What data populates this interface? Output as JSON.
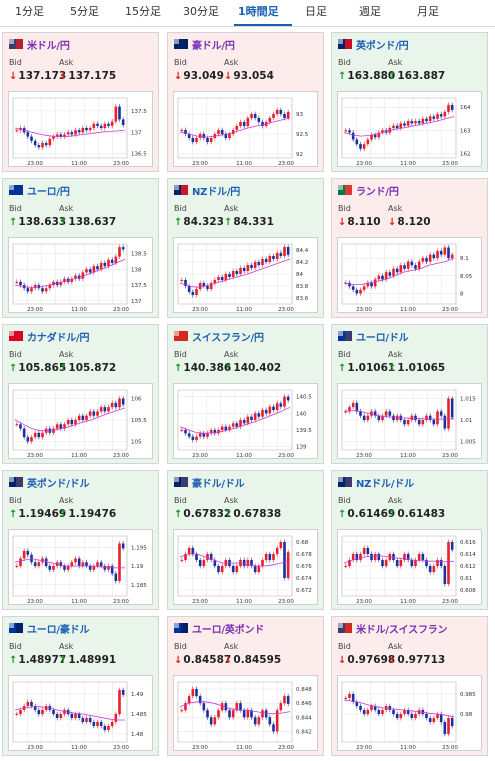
{
  "tabs": [
    {
      "label": "1分足",
      "active": false
    },
    {
      "label": "5分足",
      "active": false
    },
    {
      "label": "15分足",
      "active": false
    },
    {
      "label": "30分足",
      "active": false
    },
    {
      "label": "1時間足",
      "active": true
    },
    {
      "label": "日足",
      "active": false
    },
    {
      "label": "週足",
      "active": false
    },
    {
      "label": "月足",
      "active": false
    }
  ],
  "labels": {
    "bid": "Bid",
    "ask": "Ask"
  },
  "cards": [
    {
      "name": "米ドル/円",
      "trend": "down",
      "flag": [
        "#3c3b6e",
        "#b22234"
      ],
      "bid": "137.173",
      "ask": "137.175",
      "chart": {
        "yticks": [
          "137.5",
          "137",
          "136.5"
        ],
        "xticks": [
          "23:00",
          "11:00",
          "23:00"
        ],
        "ymin": 136.4,
        "ymax": 137.8,
        "values": [
          137.05,
          137.1,
          137.0,
          136.9,
          136.8,
          136.7,
          136.65,
          136.75,
          136.7,
          136.85,
          136.9,
          136.95,
          136.9,
          136.95,
          137.0,
          136.95,
          137.05,
          137.0,
          137.1,
          137.05,
          137.1,
          137.2,
          137.15,
          137.1,
          137.2,
          137.15,
          137.25,
          137.6,
          137.3,
          137.17
        ],
        "ma": [
          137.1,
          137.05,
          137.0,
          136.95,
          136.92,
          136.9,
          136.9,
          136.92,
          136.95,
          136.97,
          137.0,
          137.02,
          137.03,
          137.05
        ]
      }
    },
    {
      "name": "豪ドル/円",
      "trend": "down",
      "flag": [
        "#012169",
        "#012169"
      ],
      "bid": "93.049",
      "ask": "93.054",
      "chart": {
        "yticks": [
          "93",
          "92.5",
          "92"
        ],
        "xticks": [
          "23:00",
          "11:00",
          "23:00"
        ],
        "ymin": 91.9,
        "ymax": 93.4,
        "values": [
          92.6,
          92.5,
          92.4,
          92.3,
          92.4,
          92.5,
          92.4,
          92.3,
          92.4,
          92.5,
          92.6,
          92.5,
          92.4,
          92.5,
          92.6,
          92.7,
          92.8,
          92.7,
          92.9,
          93.0,
          92.9,
          92.8,
          92.7,
          92.8,
          92.9,
          93.0,
          93.1,
          93.0,
          92.9,
          93.05
        ],
        "ma": [
          92.55,
          92.5,
          92.45,
          92.42,
          92.44,
          92.48,
          92.52,
          92.58,
          92.65,
          92.7,
          92.74,
          92.8,
          92.85,
          92.9
        ]
      }
    },
    {
      "name": "英ポンド/円",
      "trend": "up",
      "flag": [
        "#012169",
        "#c8102e"
      ],
      "bid": "163.880",
      "ask": "163.887",
      "chart": {
        "yticks": [
          "164",
          "163",
          "162"
        ],
        "xticks": [
          "23:00",
          "11:00",
          "23:00"
        ],
        "ymin": 161.8,
        "ymax": 164.4,
        "values": [
          163.0,
          162.9,
          162.6,
          162.4,
          162.2,
          162.4,
          162.6,
          162.8,
          162.7,
          162.9,
          163.0,
          162.9,
          163.1,
          163.2,
          163.1,
          163.3,
          163.2,
          163.4,
          163.3,
          163.4,
          163.3,
          163.5,
          163.4,
          163.6,
          163.5,
          163.7,
          163.6,
          163.8,
          164.1,
          163.88
        ],
        "ma": [
          162.9,
          162.8,
          162.75,
          162.78,
          162.85,
          162.95,
          163.05,
          163.1,
          163.18,
          163.25,
          163.32,
          163.4,
          163.5,
          163.6
        ]
      }
    },
    {
      "name": "ユーロ/円",
      "trend": "up",
      "flag": [
        "#003399",
        "#003399"
      ],
      "bid": "138.633",
      "ask": "138.637",
      "chart": {
        "yticks": [
          "138.5",
          "138",
          "137.5",
          "137"
        ],
        "xticks": [
          "23:00",
          "11:00",
          "23:00"
        ],
        "ymin": 136.9,
        "ymax": 138.8,
        "values": [
          137.6,
          137.5,
          137.4,
          137.3,
          137.4,
          137.5,
          137.4,
          137.3,
          137.4,
          137.5,
          137.6,
          137.5,
          137.6,
          137.7,
          137.6,
          137.7,
          137.8,
          137.7,
          137.9,
          138.0,
          137.9,
          138.1,
          138.0,
          138.2,
          138.1,
          138.3,
          138.2,
          138.4,
          138.7,
          138.63
        ],
        "ma": [
          137.5,
          137.45,
          137.42,
          137.44,
          137.5,
          137.56,
          137.62,
          137.7,
          137.78,
          137.88,
          137.98,
          138.08,
          138.2,
          138.32
        ]
      }
    },
    {
      "name": "NZドル/円",
      "trend": "up",
      "flag": [
        "#012169",
        "#cc142b"
      ],
      "bid": "84.323",
      "ask": "84.331",
      "chart": {
        "yticks": [
          "84.4",
          "84.2",
          "84",
          "83.8",
          "83.6"
        ],
        "xticks": [
          "23:00",
          "11:00",
          "23:00"
        ],
        "ymin": 83.5,
        "ymax": 84.5,
        "values": [
          83.9,
          83.8,
          83.7,
          83.65,
          83.75,
          83.85,
          83.8,
          83.75,
          83.85,
          83.9,
          83.95,
          83.9,
          84.0,
          83.95,
          84.05,
          84.0,
          84.1,
          84.05,
          84.15,
          84.1,
          84.2,
          84.15,
          84.25,
          84.2,
          84.3,
          84.25,
          84.35,
          84.3,
          84.45,
          84.32
        ],
        "ma": [
          83.85,
          83.8,
          83.78,
          83.8,
          83.84,
          83.88,
          83.92,
          83.96,
          84.0,
          84.05,
          84.1,
          84.15,
          84.2,
          84.25
        ]
      }
    },
    {
      "name": "ランド/円",
      "trend": "down",
      "flag": [
        "#007749",
        "#de3831"
      ],
      "bid": "8.110",
      "ask": "8.120",
      "chart": {
        "yticks": [
          "8.1",
          "8.05",
          "8"
        ],
        "xticks": [
          "23:00",
          "11:00",
          "23:00"
        ],
        "ymin": 7.97,
        "ymax": 8.14,
        "values": [
          8.03,
          8.02,
          8.01,
          8.0,
          8.01,
          8.02,
          8.03,
          8.02,
          8.04,
          8.05,
          8.04,
          8.06,
          8.05,
          8.07,
          8.06,
          8.08,
          8.07,
          8.09,
          8.08,
          8.07,
          8.09,
          8.1,
          8.09,
          8.11,
          8.1,
          8.12,
          8.11,
          8.13,
          8.1,
          8.11
        ],
        "ma": [
          8.03,
          8.025,
          8.025,
          8.03,
          8.035,
          8.04,
          8.05,
          8.06,
          8.065,
          8.07,
          8.08,
          8.085,
          8.09,
          8.1
        ]
      }
    },
    {
      "name": "カナダドル/円",
      "trend": "up",
      "flag": [
        "#d80621",
        "#d80621"
      ],
      "bid": "105.865",
      "ask": "105.872",
      "chart": {
        "yticks": [
          "106",
          "105.5",
          "105"
        ],
        "xticks": [
          "23:00",
          "11:00",
          "23:00"
        ],
        "ymin": 104.8,
        "ymax": 106.2,
        "values": [
          105.4,
          105.3,
          105.1,
          105.0,
          105.1,
          105.2,
          105.1,
          105.2,
          105.3,
          105.2,
          105.3,
          105.4,
          105.3,
          105.4,
          105.5,
          105.4,
          105.5,
          105.6,
          105.5,
          105.6,
          105.7,
          105.6,
          105.7,
          105.8,
          105.7,
          105.8,
          105.9,
          105.8,
          106.0,
          105.86
        ],
        "ma": [
          105.5,
          105.4,
          105.3,
          105.25,
          105.25,
          105.28,
          105.32,
          105.38,
          105.45,
          105.5,
          105.58,
          105.65,
          105.72,
          105.78
        ]
      }
    },
    {
      "name": "スイスフラン/円",
      "trend": "up",
      "flag": [
        "#d52b1e",
        "#d52b1e"
      ],
      "bid": "140.386",
      "ask": "140.402",
      "chart": {
        "yticks": [
          "140.5",
          "140",
          "139.5",
          "139"
        ],
        "xticks": [
          "23:00",
          "11:00",
          "23:00"
        ],
        "ymin": 138.9,
        "ymax": 140.7,
        "values": [
          139.5,
          139.4,
          139.3,
          139.2,
          139.3,
          139.4,
          139.3,
          139.4,
          139.5,
          139.4,
          139.5,
          139.6,
          139.5,
          139.6,
          139.7,
          139.6,
          139.8,
          139.7,
          139.9,
          139.8,
          140.0,
          139.9,
          140.1,
          140.0,
          140.2,
          140.1,
          140.3,
          140.2,
          140.5,
          140.39
        ],
        "ma": [
          139.6,
          139.5,
          139.42,
          139.4,
          139.42,
          139.46,
          139.52,
          139.6,
          139.68,
          139.76,
          139.86,
          139.96,
          140.06,
          140.18
        ]
      }
    },
    {
      "name": "ユーロ/ドル",
      "trend": "up",
      "flag": [
        "#003399",
        "#3c3b6e"
      ],
      "bid": "1.01061",
      "ask": "1.01065",
      "chart": {
        "yticks": [
          "1.015",
          "1.01",
          "1.005"
        ],
        "xticks": [
          "23:00",
          "11:00",
          "23:00"
        ],
        "ymin": 1.003,
        "ymax": 1.017,
        "values": [
          1.012,
          1.013,
          1.014,
          1.012,
          1.011,
          1.01,
          1.011,
          1.012,
          1.011,
          1.01,
          1.011,
          1.012,
          1.011,
          1.01,
          1.011,
          1.01,
          1.009,
          1.01,
          1.011,
          1.01,
          1.009,
          1.01,
          1.011,
          1.01,
          1.009,
          1.012,
          1.011,
          1.008,
          1.015,
          1.0106
        ],
        "ma": [
          1.012,
          1.0122,
          1.012,
          1.0115,
          1.011,
          1.0108,
          1.0106,
          1.0105,
          1.0104,
          1.0103,
          1.0102,
          1.0102,
          1.0102,
          1.0103
        ]
      }
    },
    {
      "name": "英ポンド/ドル",
      "trend": "up",
      "flag": [
        "#012169",
        "#3c3b6e"
      ],
      "bid": "1.19469",
      "ask": "1.19476",
      "chart": {
        "yticks": [
          "1.195",
          "1.19",
          "1.185"
        ],
        "xticks": [
          "23:00",
          "11:00",
          "23:00"
        ],
        "ymin": 1.182,
        "ymax": 1.198,
        "values": [
          1.19,
          1.192,
          1.194,
          1.193,
          1.191,
          1.19,
          1.191,
          1.192,
          1.19,
          1.189,
          1.19,
          1.191,
          1.19,
          1.189,
          1.19,
          1.191,
          1.192,
          1.19,
          1.191,
          1.19,
          1.189,
          1.19,
          1.191,
          1.19,
          1.189,
          1.19,
          1.188,
          1.186,
          1.196,
          1.1947
        ],
        "ma": [
          1.191,
          1.1915,
          1.192,
          1.1915,
          1.191,
          1.1905,
          1.19,
          1.19,
          1.19,
          1.19,
          1.1898,
          1.1896,
          1.1895,
          1.1895
        ]
      }
    },
    {
      "name": "豪ドル/ドル",
      "trend": "up",
      "flag": [
        "#012169",
        "#3c3b6e"
      ],
      "bid": "0.67832",
      "ask": "0.67838",
      "chart": {
        "yticks": [
          "0.68",
          "0.678",
          "0.676",
          "0.674",
          "0.672"
        ],
        "xticks": [
          "23:00",
          "11:00",
          "23:00"
        ],
        "ymin": 0.671,
        "ymax": 0.681,
        "values": [
          0.677,
          0.678,
          0.679,
          0.678,
          0.677,
          0.676,
          0.677,
          0.678,
          0.677,
          0.676,
          0.675,
          0.676,
          0.677,
          0.676,
          0.675,
          0.676,
          0.677,
          0.676,
          0.677,
          0.676,
          0.675,
          0.676,
          0.677,
          0.678,
          0.677,
          0.678,
          0.679,
          0.68,
          0.674,
          0.6783
        ],
        "ma": [
          0.6775,
          0.678,
          0.678,
          0.6775,
          0.677,
          0.6765,
          0.6765,
          0.6765,
          0.6762,
          0.676,
          0.676,
          0.6762,
          0.6765,
          0.677
        ]
      }
    },
    {
      "name": "NZドル/ドル",
      "trend": "up",
      "flag": [
        "#012169",
        "#3c3b6e"
      ],
      "bid": "0.61469",
      "ask": "0.61483",
      "chart": {
        "yticks": [
          "0.616",
          "0.614",
          "0.612",
          "0.61",
          "0.608"
        ],
        "xticks": [
          "23:00",
          "11:00",
          "23:00"
        ],
        "ymin": 0.607,
        "ymax": 0.617,
        "values": [
          0.612,
          0.613,
          0.614,
          0.613,
          0.614,
          0.615,
          0.614,
          0.613,
          0.614,
          0.613,
          0.612,
          0.613,
          0.614,
          0.613,
          0.612,
          0.613,
          0.614,
          0.613,
          0.612,
          0.613,
          0.614,
          0.613,
          0.612,
          0.611,
          0.612,
          0.613,
          0.612,
          0.609,
          0.616,
          0.6147
        ],
        "ma": [
          0.6125,
          0.613,
          0.6134,
          0.6136,
          0.6137,
          0.6136,
          0.6134,
          0.6132,
          0.613,
          0.6129,
          0.6128,
          0.6128,
          0.6127,
          0.6128
        ]
      }
    },
    {
      "name": "ユーロ/豪ドル",
      "trend": "up",
      "flag": [
        "#003399",
        "#012169"
      ],
      "bid": "1.48977",
      "ask": "1.48991",
      "chart": {
        "yticks": [
          "1.49",
          "1.485",
          "1.48"
        ],
        "xticks": [
          "23:00",
          "11:00",
          "23:00"
        ],
        "ymin": 1.478,
        "ymax": 1.493,
        "values": [
          1.485,
          1.486,
          1.487,
          1.488,
          1.487,
          1.486,
          1.485,
          1.486,
          1.487,
          1.486,
          1.485,
          1.484,
          1.485,
          1.486,
          1.485,
          1.484,
          1.485,
          1.484,
          1.483,
          1.484,
          1.483,
          1.482,
          1.483,
          1.482,
          1.481,
          1.482,
          1.483,
          1.485,
          1.491,
          1.4898
        ],
        "ma": [
          1.486,
          1.4865,
          1.4868,
          1.4868,
          1.4865,
          1.486,
          1.4856,
          1.4852,
          1.485,
          1.4846,
          1.4842,
          1.4838,
          1.4835,
          1.4835
        ]
      }
    },
    {
      "name": "ユーロ/英ポンド",
      "trend": "down",
      "flag": [
        "#003399",
        "#012169"
      ],
      "bid": "0.84587",
      "ask": "0.84595",
      "chart": {
        "yticks": [
          "0.848",
          "0.846",
          "0.844",
          "0.842"
        ],
        "xticks": [
          "23:00",
          "11:00",
          "23:00"
        ],
        "ymin": 0.8405,
        "ymax": 0.849,
        "values": [
          0.845,
          0.846,
          0.847,
          0.848,
          0.847,
          0.846,
          0.845,
          0.844,
          0.843,
          0.844,
          0.845,
          0.846,
          0.845,
          0.844,
          0.845,
          0.846,
          0.845,
          0.844,
          0.845,
          0.844,
          0.843,
          0.844,
          0.845,
          0.844,
          0.843,
          0.842,
          0.845,
          0.846,
          0.847,
          0.8459
        ],
        "ma": [
          0.8455,
          0.846,
          0.8462,
          0.8462,
          0.846,
          0.8456,
          0.8452,
          0.845,
          0.845,
          0.8448,
          0.8446,
          0.8445,
          0.8446,
          0.8448
        ]
      }
    },
    {
      "name": "米ドル/スイスフラン",
      "trend": "down",
      "flag": [
        "#3c3b6e",
        "#d52b1e"
      ],
      "bid": "0.97698",
      "ask": "0.97713",
      "chart": {
        "yticks": [
          "0.985",
          "0.98"
        ],
        "xticks": [
          "23:00",
          "11:00",
          "23:00"
        ],
        "ymin": 0.973,
        "ymax": 0.988,
        "values": [
          0.984,
          0.985,
          0.983,
          0.982,
          0.981,
          0.98,
          0.981,
          0.982,
          0.981,
          0.98,
          0.981,
          0.982,
          0.981,
          0.98,
          0.979,
          0.98,
          0.981,
          0.98,
          0.979,
          0.98,
          0.981,
          0.98,
          0.979,
          0.978,
          0.979,
          0.98,
          0.978,
          0.975,
          0.979,
          0.977
        ],
        "ma": [
          0.9835,
          0.9832,
          0.9828,
          0.9822,
          0.9818,
          0.9814,
          0.9812,
          0.981,
          0.9808,
          0.9805,
          0.9802,
          0.98,
          0.9797,
          0.9793
        ]
      }
    }
  ]
}
